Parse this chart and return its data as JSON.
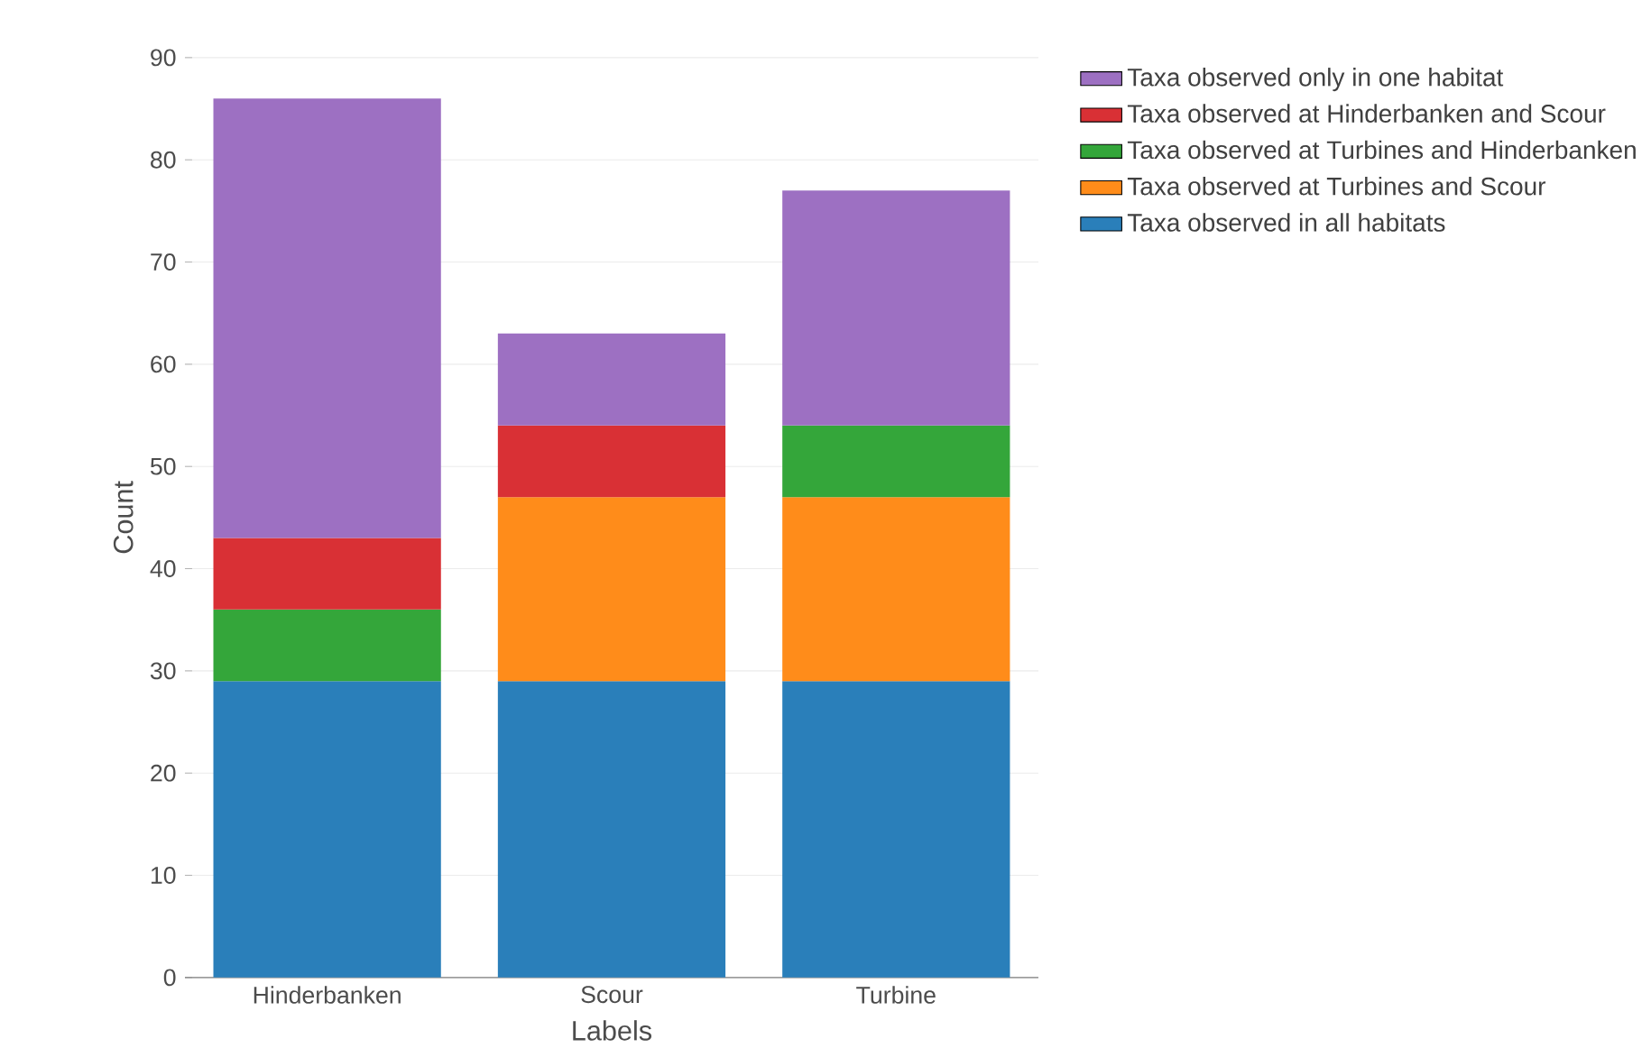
{
  "chart_data": {
    "type": "bar",
    "stacked": true,
    "xlabel": "Labels",
    "ylabel": "Count",
    "categories": [
      "Hinderbanken",
      "Scour",
      "Turbine"
    ],
    "series": [
      {
        "name": "Taxa observed in all habitats",
        "color": "#2a7fba",
        "values": [
          29,
          29,
          29
        ]
      },
      {
        "name": "Taxa observed at Turbines and Scour",
        "color": "#ff8c1a",
        "values": [
          null,
          18,
          18
        ]
      },
      {
        "name": "Taxa observed at Turbines and Hinderbanken",
        "color": "#34a63a",
        "values": [
          7,
          null,
          7
        ]
      },
      {
        "name": "Taxa observed at Hinderbanken and Scour",
        "color": "#d93035",
        "values": [
          7,
          7,
          null
        ]
      },
      {
        "name": "Taxa observed only in one habitat",
        "color": "#9d70c2",
        "values": [
          43,
          9,
          23
        ]
      }
    ],
    "ylim": [
      0,
      90
    ],
    "yticks": [
      0,
      10,
      20,
      30,
      40,
      50,
      60,
      70,
      80,
      90
    ],
    "grid": "y",
    "legend": "top right"
  }
}
